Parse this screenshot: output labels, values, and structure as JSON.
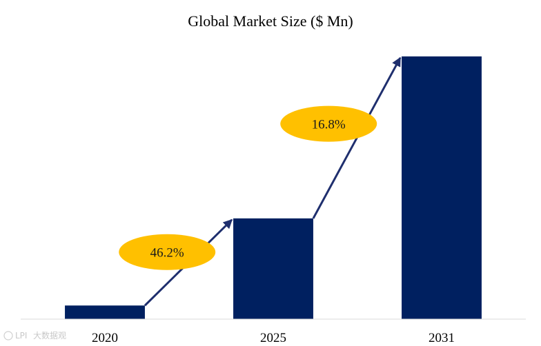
{
  "chart_data": {
    "type": "bar",
    "title": "Global Market Size ($ Mn)",
    "categories": [
      "2020",
      "2025",
      "2031"
    ],
    "values": [
      1,
      7.4,
      19.3
    ],
    "ylim": [
      0,
      20
    ],
    "xlabel": "",
    "ylabel": "",
    "grid": false,
    "bar_color": "#002060",
    "annotations": [
      {
        "label": "46.2%",
        "from": "2020",
        "to": "2025"
      },
      {
        "label": "16.8%",
        "from": "2025",
        "to": "2031"
      }
    ],
    "annotation_color": "#FFC000",
    "arrow_color": "#1F2F6E"
  },
  "watermark": {
    "logo_text": "LPI",
    "text": "大数据观"
  }
}
